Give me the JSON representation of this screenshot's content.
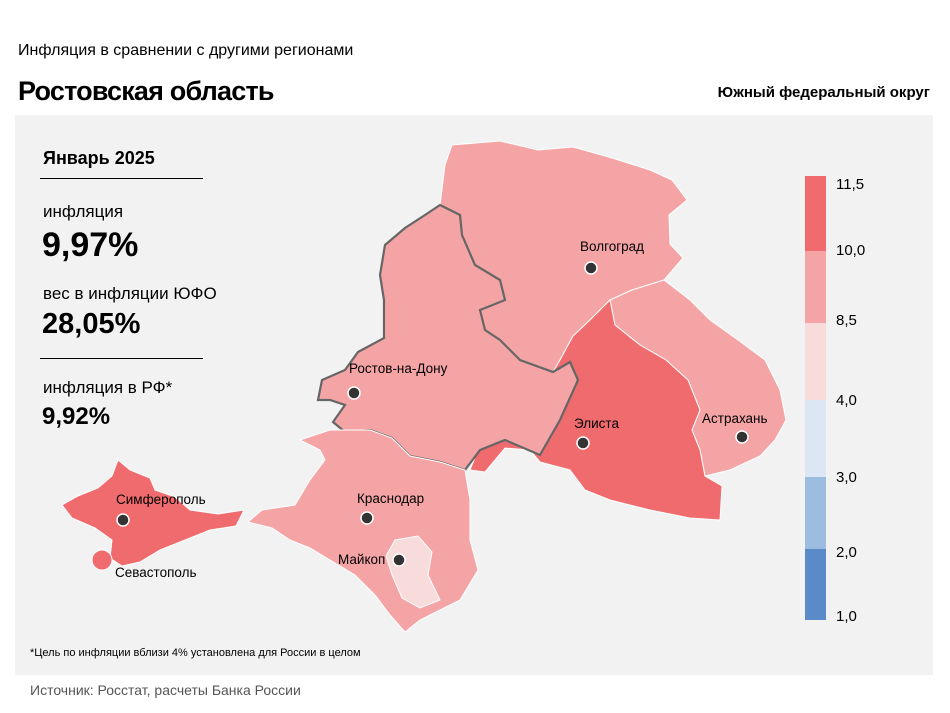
{
  "header": {
    "subtitle": "Инфляция в сравнении с другими регионами",
    "title": "Ростовская область",
    "district": "Южный федеральный округ"
  },
  "stats": {
    "period": "Январь 2025",
    "inflation_label": "инфляция",
    "inflation_value": "9,97%",
    "weight_label": "вес в инфляции ЮФО",
    "weight_value": "28,05%",
    "rf_label": "инфляция в РФ*",
    "rf_value": "9,92%"
  },
  "map": {
    "cities": {
      "volgograd": "Волгоград",
      "rostov": "Ростов-на-Дону",
      "elista": "Элиста",
      "astrakhan": "Астрахань",
      "krasnodar": "Краснодар",
      "maykop": "Майкоп",
      "simferopol": "Симферополь",
      "sevastopol": "Севастополь"
    },
    "colors": {
      "bin_1_2": "#5b8ac8",
      "bin_2_3": "#9dbde0",
      "bin_3_4": "#dde6f3",
      "bin_4_8_5": "#f8dcdc",
      "bin_8_5_10": "#f5a4a6",
      "bin_10_11_5": "#f06b6e",
      "highlight_border": "#555555"
    },
    "regions": [
      {
        "name": "Волгоград",
        "bin": "8,5–10,0"
      },
      {
        "name": "Ростов-на-Дону",
        "bin": "8,5–10,0",
        "highlighted": true
      },
      {
        "name": "Элиста",
        "bin": "10,0–11,5"
      },
      {
        "name": "Астрахань",
        "bin": "8,5–10,0"
      },
      {
        "name": "Краснодар",
        "bin": "8,5–10,0"
      },
      {
        "name": "Майкоп",
        "bin": "4,0–8,5"
      },
      {
        "name": "Симферополь",
        "bin": "10,0–11,5"
      },
      {
        "name": "Севастополь",
        "bin": "10,0–11,5"
      }
    ],
    "legend": {
      "ticks": [
        "11,5",
        "10,0",
        "8,5",
        "4,0",
        "3,0",
        "2,0",
        "1,0"
      ]
    }
  },
  "footnote": "*Цель по инфляции вблизи 4% установлена для России в целом",
  "source": "Источник: Росстат, расчеты Банка России"
}
